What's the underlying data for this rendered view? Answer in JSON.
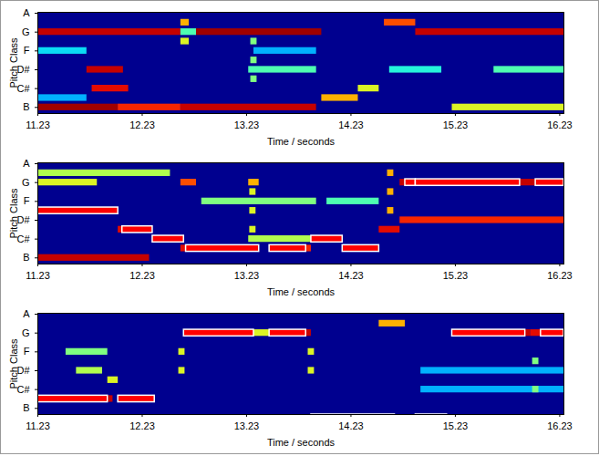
{
  "chart_data": [
    {
      "type": "heatmap",
      "x_label": "Time / seconds",
      "y_label": "Pitch Class",
      "xlim": [
        11.23,
        16.27
      ],
      "xticks": [
        11.23,
        12.23,
        13.23,
        14.23,
        15.23,
        16.23
      ],
      "ylim": [
        0.35,
        11.1
      ],
      "yticks": [
        {
          "value": 1,
          "label": "B"
        },
        {
          "value": 3,
          "label": "C#"
        },
        {
          "value": 5,
          "label": "D#"
        },
        {
          "value": 7,
          "label": "F"
        },
        {
          "value": 9,
          "label": "G"
        },
        {
          "value": 11,
          "label": "A"
        }
      ],
      "zlim": [
        0,
        1
      ],
      "cells": [
        {
          "pitch": 9,
          "start": 11.23,
          "end": 12.6,
          "value": 0.95
        },
        {
          "pitch": 9,
          "start": 12.6,
          "end": 12.75,
          "value": 0.45
        },
        {
          "pitch": 9,
          "start": 12.75,
          "end": 13.95,
          "value": 1.0
        },
        {
          "pitch": 10,
          "start": 14.55,
          "end": 14.85,
          "value": 0.8
        },
        {
          "pitch": 9,
          "start": 14.85,
          "end": 16.27,
          "value": 0.95
        },
        {
          "pitch": 10,
          "start": 12.6,
          "end": 12.68,
          "value": 0.7
        },
        {
          "pitch": 8,
          "start": 12.6,
          "end": 12.68,
          "value": 0.6
        },
        {
          "pitch": 1,
          "start": 11.23,
          "end": 12.0,
          "value": 1.0
        },
        {
          "pitch": 1,
          "start": 12.0,
          "end": 12.6,
          "value": 0.85
        },
        {
          "pitch": 1,
          "start": 12.6,
          "end": 13.9,
          "value": 0.95
        },
        {
          "pitch": 2,
          "start": 13.95,
          "end": 14.3,
          "value": 0.7
        },
        {
          "pitch": 1,
          "start": 15.2,
          "end": 16.27,
          "value": 0.6
        },
        {
          "pitch": 3,
          "start": 11.75,
          "end": 12.1,
          "value": 0.9
        },
        {
          "pitch": 3,
          "start": 14.3,
          "end": 14.5,
          "value": 0.6
        },
        {
          "pitch": 5,
          "start": 11.7,
          "end": 12.05,
          "value": 0.95
        },
        {
          "pitch": 5,
          "start": 13.25,
          "end": 13.9,
          "value": 0.45
        },
        {
          "pitch": 5,
          "start": 14.6,
          "end": 15.1,
          "value": 0.4
        },
        {
          "pitch": 5,
          "start": 15.6,
          "end": 16.27,
          "value": 0.45
        },
        {
          "pitch": 7,
          "start": 11.23,
          "end": 11.7,
          "value": 0.35
        },
        {
          "pitch": 7,
          "start": 13.3,
          "end": 13.9,
          "value": 0.3
        },
        {
          "pitch": 2,
          "start": 11.23,
          "end": 11.7,
          "value": 0.3
        },
        {
          "pitch": 0,
          "start": 13.9,
          "end": 14.1,
          "value": 0.6
        },
        {
          "pitch": 4,
          "start": 13.27,
          "end": 13.33,
          "value": 0.5
        },
        {
          "pitch": 6,
          "start": 13.27,
          "end": 13.33,
          "value": 0.5
        },
        {
          "pitch": 8,
          "start": 13.27,
          "end": 13.33,
          "value": 0.5
        }
      ]
    },
    {
      "type": "heatmap",
      "x_label": "Time / seconds",
      "y_label": "Pitch Class",
      "xlim": [
        11.23,
        16.27
      ],
      "xticks": [
        11.23,
        12.23,
        13.23,
        14.23,
        15.23,
        16.23
      ],
      "ylim": [
        0.35,
        11.1
      ],
      "yticks": [
        {
          "value": 1,
          "label": "B"
        },
        {
          "value": 3,
          "label": "C#"
        },
        {
          "value": 5,
          "label": "D#"
        },
        {
          "value": 7,
          "label": "F"
        },
        {
          "value": 9,
          "label": "G"
        },
        {
          "value": 11,
          "label": "A"
        }
      ],
      "zlim": [
        0,
        1
      ],
      "cells": [
        {
          "pitch": 9,
          "start": 11.23,
          "end": 11.8,
          "value": 0.6
        },
        {
          "pitch": 9,
          "start": 12.6,
          "end": 12.75,
          "value": 0.8
        },
        {
          "pitch": 9,
          "start": 13.25,
          "end": 13.35,
          "value": 0.7
        },
        {
          "pitch": 9,
          "start": 14.7,
          "end": 16.27,
          "value": 0.95
        },
        {
          "pitch": 10,
          "start": 11.23,
          "end": 12.5,
          "value": 0.55
        },
        {
          "pitch": 6,
          "start": 11.23,
          "end": 12.0,
          "value": 0.95
        },
        {
          "pitch": 7,
          "start": 12.8,
          "end": 13.9,
          "value": 0.5
        },
        {
          "pitch": 7,
          "start": 14.0,
          "end": 14.5,
          "value": 0.45
        },
        {
          "pitch": 4,
          "start": 12.0,
          "end": 12.33,
          "value": 0.9
        },
        {
          "pitch": 4,
          "start": 14.5,
          "end": 14.7,
          "value": 0.9
        },
        {
          "pitch": 5,
          "start": 14.7,
          "end": 16.27,
          "value": 0.85
        },
        {
          "pitch": 3,
          "start": 12.33,
          "end": 12.6,
          "value": 0.9
        },
        {
          "pitch": 3,
          "start": 13.25,
          "end": 13.85,
          "value": 0.55
        },
        {
          "pitch": 3,
          "start": 13.85,
          "end": 14.15,
          "value": 0.95
        },
        {
          "pitch": 2,
          "start": 12.6,
          "end": 13.35,
          "value": 0.9
        },
        {
          "pitch": 2,
          "start": 13.45,
          "end": 13.85,
          "value": 0.85
        },
        {
          "pitch": 2,
          "start": 14.15,
          "end": 14.5,
          "value": 0.85
        },
        {
          "pitch": 1,
          "start": 11.23,
          "end": 12.3,
          "value": 0.95
        },
        {
          "pitch": 0,
          "start": 15.2,
          "end": 16.27,
          "value": 0.35
        },
        {
          "pitch": 4,
          "start": 13.26,
          "end": 13.32,
          "value": 0.6
        },
        {
          "pitch": 6,
          "start": 13.26,
          "end": 13.32,
          "value": 0.6
        },
        {
          "pitch": 8,
          "start": 13.26,
          "end": 13.32,
          "value": 0.6
        },
        {
          "pitch": 6,
          "start": 14.58,
          "end": 14.64,
          "value": 0.7
        },
        {
          "pitch": 8,
          "start": 14.58,
          "end": 14.64,
          "value": 0.7
        },
        {
          "pitch": 10,
          "start": 14.58,
          "end": 14.64,
          "value": 0.7
        }
      ],
      "segments": [
        {
          "pitch": 6,
          "start": 11.23,
          "end": 12.0
        },
        {
          "pitch": 4,
          "start": 12.04,
          "end": 12.33
        },
        {
          "pitch": 3,
          "start": 12.33,
          "end": 12.63
        },
        {
          "pitch": 2,
          "start": 12.65,
          "end": 13.35
        },
        {
          "pitch": 2,
          "start": 13.45,
          "end": 13.8
        },
        {
          "pitch": 3,
          "start": 13.85,
          "end": 14.15
        },
        {
          "pitch": 2,
          "start": 14.15,
          "end": 14.5
        },
        {
          "pitch": 9,
          "start": 14.75,
          "end": 14.85
        },
        {
          "pitch": 9,
          "start": 14.85,
          "end": 15.85
        },
        {
          "pitch": 9,
          "start": 16.0,
          "end": 16.27
        }
      ]
    },
    {
      "type": "heatmap",
      "x_label": "Time / seconds",
      "y_label": "Pitch Class",
      "xlim": [
        11.23,
        16.27
      ],
      "xticks": [
        11.23,
        12.23,
        13.23,
        14.23,
        15.23,
        16.23
      ],
      "ylim": [
        0.35,
        11.1
      ],
      "yticks": [
        {
          "value": 1,
          "label": "B"
        },
        {
          "value": 3,
          "label": "C#"
        },
        {
          "value": 5,
          "label": "D#"
        },
        {
          "value": 7,
          "label": "F"
        },
        {
          "value": 9,
          "label": "G"
        },
        {
          "value": 11,
          "label": "A"
        }
      ],
      "zlim": [
        0,
        1
      ],
      "cells": [
        {
          "pitch": 9,
          "start": 12.63,
          "end": 13.3,
          "value": 0.95
        },
        {
          "pitch": 9,
          "start": 13.3,
          "end": 13.45,
          "value": 0.6
        },
        {
          "pitch": 9,
          "start": 13.45,
          "end": 13.85,
          "value": 0.95
        },
        {
          "pitch": 10,
          "start": 14.5,
          "end": 14.75,
          "value": 0.7
        },
        {
          "pitch": 9,
          "start": 15.2,
          "end": 15.95,
          "value": 0.95
        },
        {
          "pitch": 9,
          "start": 15.95,
          "end": 16.27,
          "value": 0.9
        },
        {
          "pitch": 2,
          "start": 11.23,
          "end": 11.95,
          "value": 0.95
        },
        {
          "pitch": 2,
          "start": 12.0,
          "end": 12.35,
          "value": 0.95
        },
        {
          "pitch": 4,
          "start": 11.9,
          "end": 12.0,
          "value": 0.6
        },
        {
          "pitch": 0,
          "start": 13.85,
          "end": 14.65,
          "value": 0.95
        },
        {
          "pitch": 0,
          "start": 14.85,
          "end": 15.15,
          "value": 0.9
        },
        {
          "pitch": 5,
          "start": 11.6,
          "end": 11.85,
          "value": 0.55
        },
        {
          "pitch": 5,
          "start": 14.9,
          "end": 16.27,
          "value": 0.3
        },
        {
          "pitch": 3,
          "start": 14.9,
          "end": 16.27,
          "value": 0.3
        },
        {
          "pitch": 7,
          "start": 11.5,
          "end": 11.9,
          "value": 0.5
        },
        {
          "pitch": 5,
          "start": 12.58,
          "end": 12.64,
          "value": 0.6
        },
        {
          "pitch": 7,
          "start": 12.58,
          "end": 12.64,
          "value": 0.6
        },
        {
          "pitch": 5,
          "start": 13.82,
          "end": 13.88,
          "value": 0.6
        },
        {
          "pitch": 7,
          "start": 13.82,
          "end": 13.88,
          "value": 0.6
        },
        {
          "pitch": 3,
          "start": 15.97,
          "end": 16.03,
          "value": 0.5
        },
        {
          "pitch": 6,
          "start": 15.97,
          "end": 16.03,
          "value": 0.5
        }
      ],
      "segments": [
        {
          "pitch": 2,
          "start": 11.23,
          "end": 11.9
        },
        {
          "pitch": 2,
          "start": 12.0,
          "end": 12.35
        },
        {
          "pitch": 9,
          "start": 12.63,
          "end": 13.3
        },
        {
          "pitch": 9,
          "start": 13.45,
          "end": 13.8
        },
        {
          "pitch": 0,
          "start": 13.85,
          "end": 14.65
        },
        {
          "pitch": 0,
          "start": 14.85,
          "end": 15.15
        },
        {
          "pitch": 9,
          "start": 15.2,
          "end": 15.9
        },
        {
          "pitch": 9,
          "start": 16.05,
          "end": 16.27
        }
      ]
    }
  ]
}
